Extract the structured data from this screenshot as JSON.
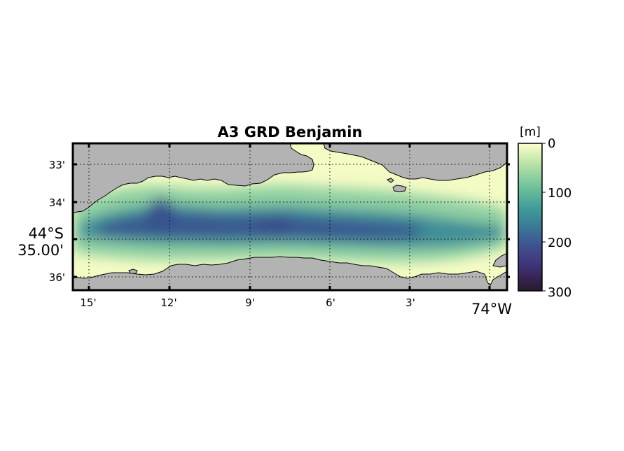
{
  "title": "A3 GRD Benjamin",
  "colorbar": {
    "unit_label": "[m]",
    "min": 0,
    "max": 300,
    "ticks": [
      "0",
      "100",
      "200",
      "300"
    ],
    "colormap": "deep",
    "stops": [
      "#fdfecc",
      "#a6dba2",
      "#5fb79a",
      "#3f8f98",
      "#3a6a95",
      "#413e88",
      "#3b2a5c",
      "#281a2c"
    ]
  },
  "map": {
    "land_color": "#b3b3b3",
    "grid": "dotted",
    "lon_ticks": [
      "15'",
      "12'",
      "9'",
      "6'",
      "3'"
    ],
    "lon_major_label": "74°W",
    "lat_ticks": [
      "33'",
      "34'",
      "36'"
    ],
    "lat_major_label_line1": "44°S",
    "lat_major_label_line2": "35.00'",
    "max_depth_m": 210
  }
}
